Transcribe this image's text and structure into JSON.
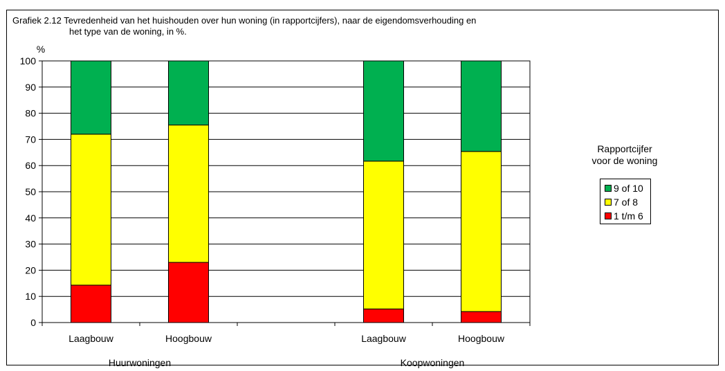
{
  "chart_data": {
    "type": "bar",
    "stacked": true,
    "title_line1": "Grafiek 2.12 Tevredenheid van het huishouden over hun woning (in rapportcijfers), naar de eigendomsverhouding en",
    "title_line2": "het type van de woning, in %.",
    "ylabel": "%",
    "ylim": [
      0,
      100
    ],
    "yticks": [
      0,
      10,
      20,
      30,
      40,
      50,
      60,
      70,
      80,
      90,
      100
    ],
    "grid": true,
    "groups": [
      {
        "label": "Huurwoningen",
        "categories": [
          "Laagbouw",
          "Hoogbouw"
        ]
      },
      {
        "label": "Koopwoningen",
        "categories": [
          "Laagbouw",
          "Hoogbouw"
        ]
      }
    ],
    "categories": [
      "Laagbouw",
      "Hoogbouw",
      "Laagbouw",
      "Hoogbouw"
    ],
    "series": [
      {
        "name": "1 t/m 6",
        "color": "#ff0000",
        "values": [
          14.3,
          23,
          5.2,
          4.2
        ]
      },
      {
        "name": "7 of 8",
        "color": "#ffff00",
        "values": [
          57.7,
          52.5,
          56.5,
          61.2
        ]
      },
      {
        "name": "9 of 10",
        "color": "#00b050",
        "values": [
          28,
          24.5,
          38.3,
          34.6
        ]
      }
    ],
    "legend": {
      "title_line1": "Rapportcijfer",
      "title_line2": "voor de woning",
      "placement": "right",
      "order": [
        "9 of 10",
        "7 of 8",
        "1 t/m 6"
      ]
    }
  }
}
